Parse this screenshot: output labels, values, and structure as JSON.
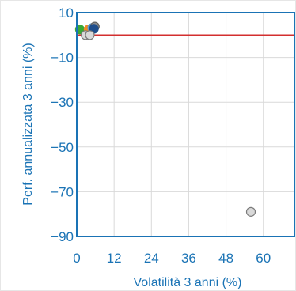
{
  "chart_data": {
    "type": "scatter",
    "title": "",
    "xlabel": "Volatilità 3 anni (%)",
    "ylabel": "Perf. annualizzata 3 anni (%)",
    "xlim": [
      0,
      70
    ],
    "ylim": [
      -90,
      10
    ],
    "x_ticks": [
      0,
      12,
      24,
      36,
      48,
      60
    ],
    "y_ticks": [
      10,
      -10,
      -30,
      -50,
      -70,
      -90
    ],
    "grid": true,
    "reference_line": {
      "y": 0,
      "color": "#d32f2f"
    },
    "points": [
      {
        "x": 1.0,
        "y": 2.5,
        "color": "#3aa935",
        "border": "#3aa935"
      },
      {
        "x": 3.8,
        "y": 2.5,
        "color": "#f08a24",
        "border": "#f08a24"
      },
      {
        "x": 5.0,
        "y": 3.2,
        "color": "#5b9bd5",
        "border": "#5b9bd5"
      },
      {
        "x": 5.8,
        "y": 3.8,
        "color": "#8c8c8c",
        "border": "#5f5f5f"
      },
      {
        "x": 5.5,
        "y": 2.8,
        "color": "#1f4e8c",
        "border": "#1f4e8c"
      },
      {
        "x": 2.8,
        "y": 0.0,
        "color": "#d9d9d9",
        "border": "#7a7a7a"
      },
      {
        "x": 4.2,
        "y": 0.0,
        "color": "#d9d9d9",
        "border": "#7a7a7a"
      },
      {
        "x": 56.0,
        "y": -79.0,
        "color": "#d9d9d9",
        "border": "#7a7a7a"
      }
    ]
  },
  "colors": {
    "axis": "#1a73b5",
    "grid": "#d9d9d9",
    "reference": "#d32f2f"
  }
}
